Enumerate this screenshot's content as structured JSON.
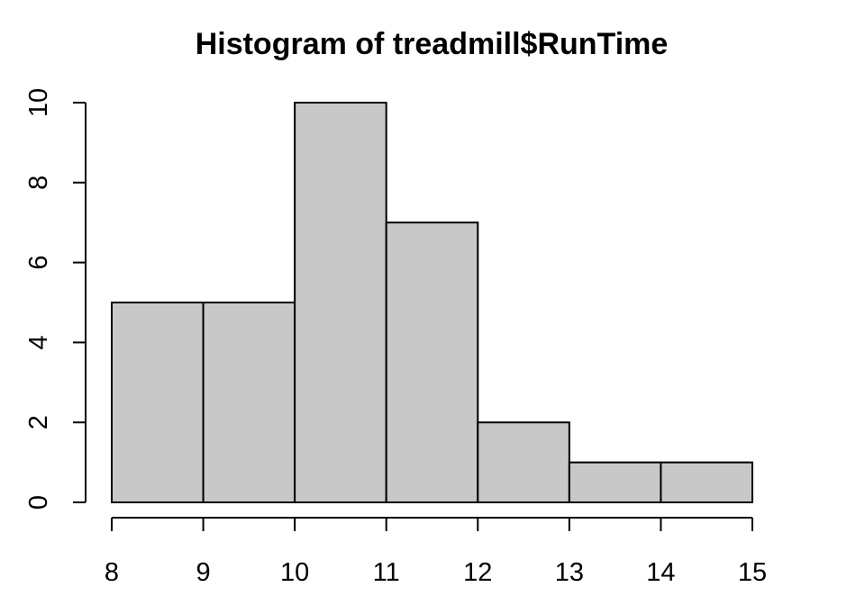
{
  "chart_data": {
    "type": "bar",
    "title": "Histogram of treadmill$RunTime",
    "xlabel": "",
    "ylabel": "",
    "bins": [
      {
        "from": 8,
        "to": 9,
        "count": 5
      },
      {
        "from": 9,
        "to": 10,
        "count": 5
      },
      {
        "from": 10,
        "to": 11,
        "count": 10
      },
      {
        "from": 11,
        "to": 12,
        "count": 7
      },
      {
        "from": 12,
        "to": 13,
        "count": 2
      },
      {
        "from": 13,
        "to": 14,
        "count": 1
      },
      {
        "from": 14,
        "to": 15,
        "count": 1
      }
    ],
    "x_ticks": [
      8,
      9,
      10,
      11,
      12,
      13,
      14,
      15
    ],
    "y_ticks": [
      0,
      2,
      4,
      6,
      8,
      10
    ],
    "xlim": [
      8,
      15
    ],
    "ylim": [
      0,
      10
    ],
    "grid": false,
    "bar_color": "#c8c8c8",
    "border_color": "#000000"
  }
}
